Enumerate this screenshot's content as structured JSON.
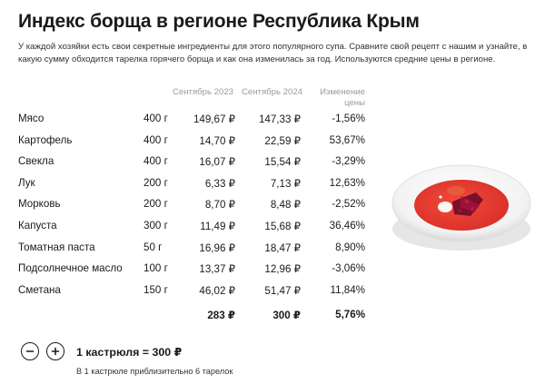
{
  "title": "Индекс борща в регионе Республика Крым",
  "description": "У каждой хозяйки есть свои секретные ингредиенты для этого популярного супа. Сравните свой рецепт с нашим и узнайте, в какую сумму обходится тарелка горячего борща и как она изменилась за год. Используются средние цены в регионе.",
  "columns": {
    "sep2023": "Сентябрь 2023",
    "sep2024": "Сентябрь 2024",
    "change_line1": "Изменение",
    "change_line2": "цены"
  },
  "rows": [
    {
      "name": "Мясо",
      "qty": "400 г",
      "p23": "149,67 ₽",
      "p24": "147,33 ₽",
      "chg": "-1,56%"
    },
    {
      "name": "Картофель",
      "qty": "400 г",
      "p23": "14,70 ₽",
      "p24": "22,59 ₽",
      "chg": "53,67%"
    },
    {
      "name": "Свекла",
      "qty": "400 г",
      "p23": "16,07 ₽",
      "p24": "15,54 ₽",
      "chg": "-3,29%"
    },
    {
      "name": "Лук",
      "qty": "200 г",
      "p23": "6,33 ₽",
      "p24": "7,13 ₽",
      "chg": "12,63%"
    },
    {
      "name": "Морковь",
      "qty": "200 г",
      "p23": "8,70 ₽",
      "p24": "8,48 ₽",
      "chg": "-2,52%"
    },
    {
      "name": "Капуста",
      "qty": "300 г",
      "p23": "11,49 ₽",
      "p24": "15,68 ₽",
      "chg": "36,46%"
    },
    {
      "name": "Томатная паста",
      "qty": "50 г",
      "p23": "16,96 ₽",
      "p24": "18,47 ₽",
      "chg": "8,90%"
    },
    {
      "name": "Подсолнечное масло",
      "qty": "100 г",
      "p23": "13,37 ₽",
      "p24": "12,96 ₽",
      "chg": "-3,06%"
    },
    {
      "name": "Сметана",
      "qty": "150 г",
      "p23": "46,02 ₽",
      "p24": "51,47 ₽",
      "chg": "11,84%"
    }
  ],
  "total": {
    "p23": "283 ₽",
    "p24": "300 ₽",
    "chg": "5,76%"
  },
  "stepper": {
    "minus_icon": "minus-icon",
    "plus_icon": "plus-icon",
    "label": "1 кастрюля = 300 ₽",
    "note": "В 1 кастрюле приблизительно 6 тарелок"
  },
  "illustration": "borscht-plate-image",
  "colors": {
    "soup": "#e2392b",
    "accent": "#c41f3a",
    "text": "#1a1a1a",
    "muted": "#9a9a9a"
  }
}
